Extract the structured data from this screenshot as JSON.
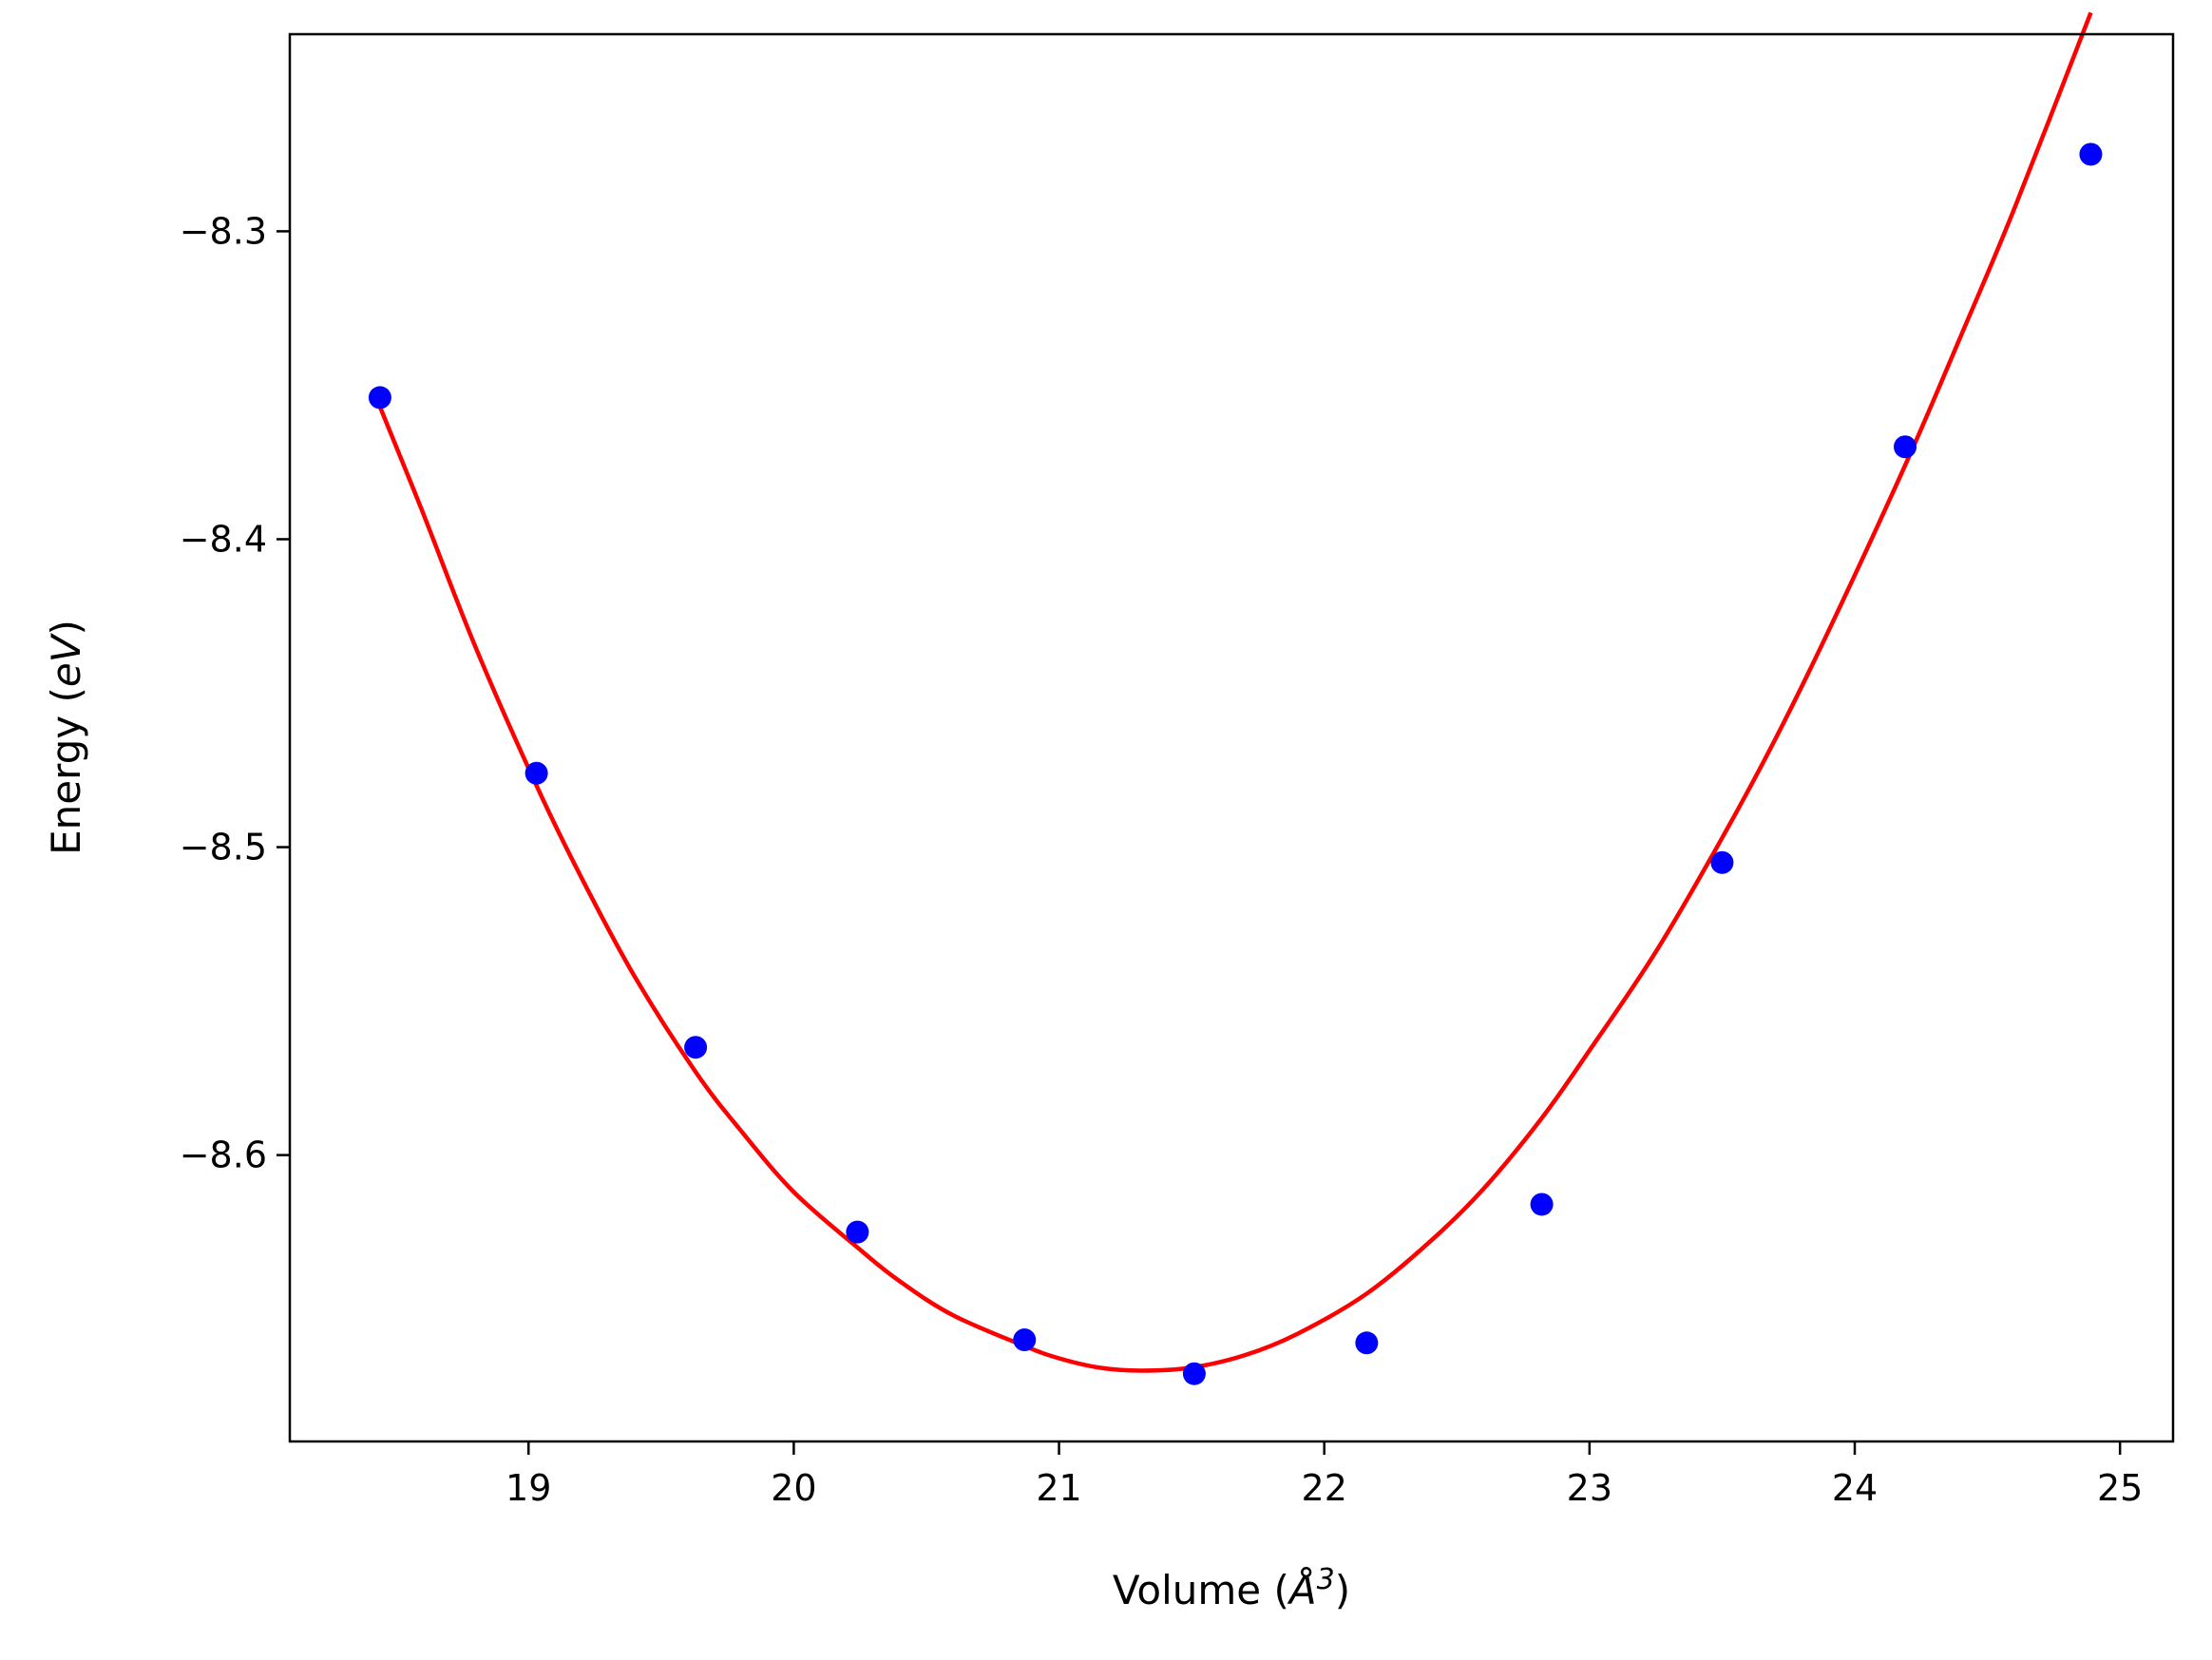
{
  "chart_data": {
    "type": "scatter",
    "title": "",
    "xlabel": "Volume (",
    "xlabel_symbol": "Å",
    "xlabel_power": "3",
    "xlabel_close": ")",
    "ylabel": "Energy (",
    "ylabel_unit": "eV",
    "ylabel_close": ")",
    "xlim": [
      18.1,
      25.2
    ],
    "ylim": [
      -8.693,
      -8.236
    ],
    "xticks": [
      19,
      20,
      21,
      22,
      23,
      24,
      25
    ],
    "xtick_labels": [
      "19",
      "20",
      "21",
      "22",
      "23",
      "24",
      "25"
    ],
    "yticks": [
      -8.3,
      -8.4,
      -8.5,
      -8.6
    ],
    "ytick_labels": [
      "−8.3",
      "−8.4",
      "−8.5",
      "−8.6"
    ],
    "grid": false,
    "legend": "none",
    "series": [
      {
        "kind": "points",
        "color": "#0000ff",
        "x": [
          18.44,
          19.03,
          19.63,
          20.24,
          20.87,
          21.51,
          22.16,
          22.82,
          23.5,
          24.19,
          24.89
        ],
        "y": [
          -8.354,
          -8.476,
          -8.565,
          -8.625,
          -8.66,
          -8.671,
          -8.661,
          -8.616,
          -8.505,
          -8.37,
          -8.275
        ]
      },
      {
        "kind": "line",
        "color": "#ff0000",
        "x": [
          18.44,
          18.6,
          18.8,
          19.03,
          19.2,
          19.4,
          19.63,
          19.8,
          20.0,
          20.24,
          20.4,
          20.6,
          20.87,
          21.0,
          21.15,
          21.31,
          21.5,
          21.7,
          21.9,
          22.16,
          22.4,
          22.6,
          22.82,
          23.0,
          23.25,
          23.5,
          23.7,
          23.9,
          24.19,
          24.4,
          24.6,
          24.89
        ],
        "y": [
          -8.357,
          -8.391,
          -8.435,
          -8.48,
          -8.51,
          -8.542,
          -8.573,
          -8.592,
          -8.612,
          -8.63,
          -8.641,
          -8.652,
          -8.662,
          -8.666,
          -8.669,
          -8.67,
          -8.669,
          -8.665,
          -8.658,
          -8.645,
          -8.628,
          -8.611,
          -8.588,
          -8.566,
          -8.534,
          -8.497,
          -8.465,
          -8.43,
          -8.376,
          -8.334,
          -8.293,
          -8.229
        ]
      }
    ]
  }
}
